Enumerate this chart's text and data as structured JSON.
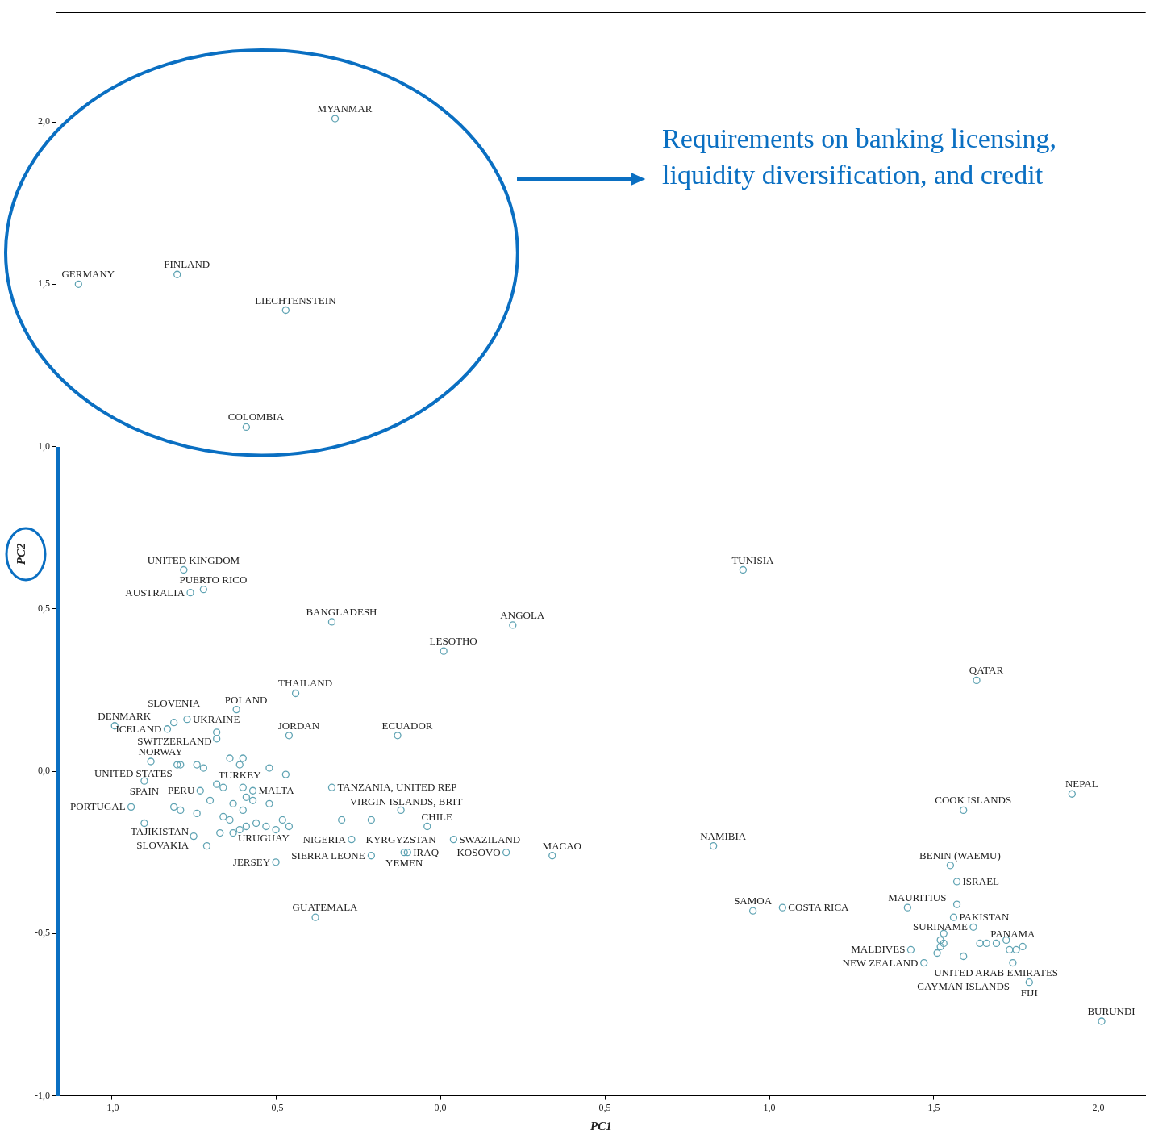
{
  "chart_data": {
    "type": "scatter",
    "xlabel": "PC1",
    "ylabel": "PC2",
    "marker": "circle",
    "grid": false,
    "legend": false,
    "xlim": [
      -1.167,
      2.144
    ],
    "ylim": [
      -1.0,
      2.338
    ],
    "xticks": [
      {
        "value": -1,
        "label": "-1,0"
      },
      {
        "value": -0.5,
        "label": "-0,5"
      },
      {
        "value": 0,
        "label": "0,0"
      },
      {
        "value": 0.5,
        "label": "0,5"
      },
      {
        "value": 1,
        "label": "1,0"
      },
      {
        "value": 1.5,
        "label": "1,5"
      },
      {
        "value": 2,
        "label": "2,0"
      }
    ],
    "yticks": [
      {
        "value": -1,
        "label": "-1,0"
      },
      {
        "value": -0.5,
        "label": "-0,5"
      },
      {
        "value": 0,
        "label": "0,0"
      },
      {
        "value": 0.5,
        "label": "0,5"
      },
      {
        "value": 1,
        "label": "1,0"
      },
      {
        "value": 1.5,
        "label": "1,5"
      },
      {
        "value": 2,
        "label": "2,0"
      }
    ],
    "series": [
      {
        "color": "#5fa3b3",
        "x": [
          -0.32,
          -1.1,
          -0.8,
          -0.47,
          -0.59,
          -0.78,
          -0.72,
          -0.76,
          -0.33,
          0.92,
          0.22,
          0.01,
          1.63,
          -0.44,
          -0.62,
          -0.13,
          -0.46,
          -0.68,
          -0.99,
          -0.81,
          -0.77,
          -0.83,
          -0.88,
          -0.61,
          -0.8,
          -0.33,
          -0.9,
          -0.94,
          -0.73,
          -0.57,
          -0.74,
          -0.64,
          -0.75,
          -0.3,
          -0.12,
          -0.27,
          -0.04,
          0.04,
          -0.11,
          -0.1,
          -0.21,
          0.2,
          0.34,
          -0.5,
          -0.38,
          0.83,
          0.95,
          1.04,
          1.59,
          1.92,
          1.55,
          1.57,
          1.42,
          1.56,
          1.43,
          1.47,
          1.62,
          1.69,
          1.59,
          1.74,
          1.79,
          2.01,
          -0.68,
          -0.64,
          -0.6,
          -0.79,
          -0.74,
          -0.72,
          -0.52,
          -0.47,
          -0.68,
          -0.66,
          -0.6,
          -0.59,
          -0.57,
          -0.7,
          -0.81,
          -0.79,
          -0.63,
          -0.6,
          -0.52,
          -0.66,
          -0.9,
          -0.67,
          -0.63,
          -0.61,
          -0.59,
          -0.56,
          -0.53,
          -0.48,
          -0.46,
          -0.5,
          -0.71,
          -0.21,
          1.57,
          1.53,
          1.52,
          1.53,
          1.52,
          1.51,
          1.64,
          1.66,
          1.72,
          1.73,
          1.75,
          1.77
        ],
        "values": [
          2.01,
          1.5,
          1.53,
          1.42,
          1.06,
          0.62,
          0.56,
          0.55,
          0.46,
          0.62,
          0.45,
          0.37,
          0.28,
          0.24,
          0.19,
          0.11,
          0.11,
          0.12,
          0.14,
          0.15,
          0.16,
          0.13,
          0.03,
          0.02,
          0.02,
          -0.05,
          -0.03,
          -0.11,
          -0.06,
          -0.06,
          -0.13,
          -0.15,
          -0.2,
          -0.15,
          -0.12,
          -0.21,
          -0.17,
          -0.21,
          -0.25,
          -0.25,
          -0.26,
          -0.25,
          -0.26,
          -0.28,
          -0.45,
          -0.23,
          -0.43,
          -0.42,
          -0.12,
          -0.07,
          -0.29,
          -0.34,
          -0.42,
          -0.45,
          -0.55,
          -0.59,
          -0.48,
          -0.53,
          -0.57,
          -0.59,
          -0.65,
          -0.77,
          0.1,
          0.04,
          0.04,
          0.02,
          0.02,
          0.01,
          0.01,
          -0.01,
          -0.04,
          -0.05,
          -0.05,
          -0.08,
          -0.09,
          -0.09,
          -0.11,
          -0.12,
          -0.1,
          -0.12,
          -0.1,
          -0.14,
          -0.16,
          -0.19,
          -0.19,
          -0.18,
          -0.17,
          -0.16,
          -0.17,
          -0.15,
          -0.17,
          -0.18,
          -0.23,
          -0.15,
          -0.41,
          -0.5,
          -0.52,
          -0.53,
          -0.54,
          -0.56,
          -0.53,
          -0.53,
          -0.52,
          -0.55,
          -0.55,
          -0.54
        ]
      }
    ],
    "annotations": [
      "Requirements on banking licensing, liquidity diversification, and credit",
      {
        "text": "MYANMAR",
        "x": -0.32,
        "y": 2.01
      },
      {
        "text": "GERMANY",
        "x": -1.1,
        "y": 1.5
      },
      {
        "text": "FINLAND",
        "x": -0.8,
        "y": 1.53
      },
      {
        "text": "LIECHTENSTEIN",
        "x": -0.47,
        "y": 1.42
      },
      {
        "text": "COLOMBIA",
        "x": -0.59,
        "y": 1.06
      },
      {
        "text": "UNITED KINGDOM",
        "x": -0.78,
        "y": 0.62
      },
      {
        "text": "PUERTO RICO",
        "x": -0.72,
        "y": 0.56
      },
      {
        "text": "AUSTRALIA",
        "x": -0.76,
        "y": 0.55
      },
      {
        "text": "BANGLADESH",
        "x": -0.33,
        "y": 0.46
      },
      {
        "text": "TUNISIA",
        "x": 0.92,
        "y": 0.62
      },
      {
        "text": "ANGOLA",
        "x": 0.22,
        "y": 0.45
      },
      {
        "text": "LESOTHO",
        "x": 0.01,
        "y": 0.37
      },
      {
        "text": "QATAR",
        "x": 1.63,
        "y": 0.28
      },
      {
        "text": "THAILAND",
        "x": -0.44,
        "y": 0.24
      },
      {
        "text": "POLAND",
        "x": -0.62,
        "y": 0.19
      },
      {
        "text": "ECUADOR",
        "x": -0.13,
        "y": 0.11
      },
      {
        "text": "JORDAN",
        "x": -0.46,
        "y": 0.11
      },
      {
        "text": "SWITZERLAND",
        "x": -0.68,
        "y": 0.12
      },
      {
        "text": "DENMARK",
        "x": -0.99,
        "y": 0.14
      },
      {
        "text": "SLOVENIA",
        "x": -0.81,
        "y": 0.15
      },
      {
        "text": "UKRAINE",
        "x": -0.77,
        "y": 0.16
      },
      {
        "text": "ICELAND",
        "x": -0.83,
        "y": 0.13
      },
      {
        "text": "NORWAY",
        "x": -0.88,
        "y": 0.03
      },
      {
        "text": "TURKEY",
        "x": -0.61,
        "y": 0.02
      },
      {
        "text": "UNITED STATES",
        "x": -0.8,
        "y": 0.02
      },
      {
        "text": "TANZANIA, UNITED REP",
        "x": -0.33,
        "y": -0.05
      },
      {
        "text": "SPAIN",
        "x": -0.9,
        "y": -0.03
      },
      {
        "text": "PORTUGAL",
        "x": -0.94,
        "y": -0.11
      },
      {
        "text": "PERU",
        "x": -0.73,
        "y": -0.06
      },
      {
        "text": "MALTA",
        "x": -0.57,
        "y": -0.06
      },
      {
        "text": "TAJIKISTAN",
        "x": -0.74,
        "y": -0.13
      },
      {
        "text": "URUGUAY",
        "x": -0.64,
        "y": -0.15
      },
      {
        "text": "SLOVAKIA",
        "x": -0.75,
        "y": -0.2
      },
      {
        "text": "VIRGIN ISLANDS, BRIT",
        "x": -0.3,
        "y": -0.15
      },
      {
        "text": "KYRGYZSTAN",
        "x": -0.12,
        "y": -0.12
      },
      {
        "text": "NIGERIA",
        "x": -0.27,
        "y": -0.21
      },
      {
        "text": "CHILE",
        "x": -0.04,
        "y": -0.17
      },
      {
        "text": "SWAZILAND",
        "x": 0.04,
        "y": -0.21
      },
      {
        "text": "YEMEN",
        "x": -0.11,
        "y": -0.25
      },
      {
        "text": "IRAQ",
        "x": -0.1,
        "y": -0.25
      },
      {
        "text": "SIERRA LEONE",
        "x": -0.21,
        "y": -0.26
      },
      {
        "text": "KOSOVO",
        "x": 0.2,
        "y": -0.25
      },
      {
        "text": "MACAO",
        "x": 0.34,
        "y": -0.26
      },
      {
        "text": "JERSEY",
        "x": -0.5,
        "y": -0.28
      },
      {
        "text": "GUATEMALA",
        "x": -0.38,
        "y": -0.45
      },
      {
        "text": "NAMIBIA",
        "x": 0.83,
        "y": -0.23
      },
      {
        "text": "SAMOA",
        "x": 0.95,
        "y": -0.43
      },
      {
        "text": "COSTA RICA",
        "x": 1.04,
        "y": -0.42
      },
      {
        "text": "COOK ISLANDS",
        "x": 1.59,
        "y": -0.12
      },
      {
        "text": "NEPAL",
        "x": 1.92,
        "y": -0.07
      },
      {
        "text": "BENIN (WAEMU)",
        "x": 1.55,
        "y": -0.29
      },
      {
        "text": "ISRAEL",
        "x": 1.57,
        "y": -0.34
      },
      {
        "text": "MAURITIUS",
        "x": 1.42,
        "y": -0.42
      },
      {
        "text": "PAKISTAN",
        "x": 1.56,
        "y": -0.45
      },
      {
        "text": "MALDIVES",
        "x": 1.43,
        "y": -0.55
      },
      {
        "text": "NEW ZEALAND",
        "x": 1.47,
        "y": -0.59
      },
      {
        "text": "SURINAME",
        "x": 1.62,
        "y": -0.48
      },
      {
        "text": "UNITED ARAB EMIRATES",
        "x": 1.69,
        "y": -0.53
      },
      {
        "text": "CAYMAN ISLANDS",
        "x": 1.59,
        "y": -0.57
      },
      {
        "text": "PANAMA",
        "x": 1.74,
        "y": -0.59
      },
      {
        "text": "FIJI",
        "x": 1.79,
        "y": -0.65
      },
      {
        "text": "BURUNDI",
        "x": 2.01,
        "y": -0.77
      }
    ]
  }
}
